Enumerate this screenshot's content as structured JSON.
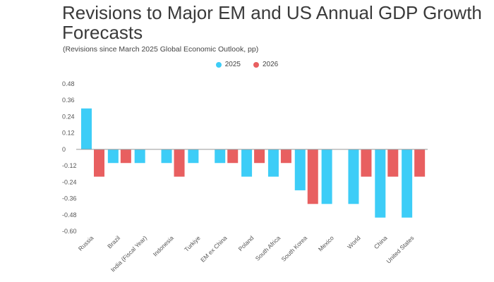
{
  "header": {
    "title": "Revisions to Major EM and US Annual GDP Growth Forecasts",
    "subtitle": "(Revisions since March 2025 Global Economic Outlook, pp)"
  },
  "colors": {
    "series_2025": "#3dcdf7",
    "series_2026": "#e85f60",
    "axis": "#999999"
  },
  "chart_data": {
    "type": "bar",
    "title": "Revisions to Major EM and US Annual GDP Growth Forecasts",
    "subtitle": "(Revisions since March 2025 Global Economic Outlook, pp)",
    "xlabel": "",
    "ylabel": "",
    "ylim": [
      -0.6,
      0.48
    ],
    "yticks": [
      0.48,
      0.36,
      0.24,
      0.12,
      0,
      -0.12,
      -0.24,
      -0.36,
      -0.48,
      -0.6
    ],
    "ytick_labels": [
      "0.48",
      "0.36",
      "0.24",
      "0.12",
      "0",
      "-0.12",
      "-0.24",
      "-0.36",
      "-0.48",
      "-0.60"
    ],
    "grid": false,
    "legend_position": "top-center",
    "categories": [
      "Russia",
      "Brazil",
      "India (Fiscal Year)",
      "Indonesia",
      "Turkiye",
      "EM ex China",
      "Poland",
      "South Africa",
      "South Korea",
      "Mexico",
      "World",
      "China",
      "United States"
    ],
    "series": [
      {
        "name": "2025",
        "values": [
          0.3,
          -0.1,
          -0.1,
          -0.1,
          -0.1,
          -0.1,
          -0.2,
          -0.2,
          -0.3,
          -0.4,
          -0.4,
          -0.5,
          -0.5
        ]
      },
      {
        "name": "2026",
        "values": [
          -0.2,
          -0.1,
          null,
          -0.2,
          null,
          -0.1,
          -0.1,
          -0.1,
          -0.4,
          null,
          -0.2,
          -0.2,
          -0.2
        ]
      }
    ]
  }
}
